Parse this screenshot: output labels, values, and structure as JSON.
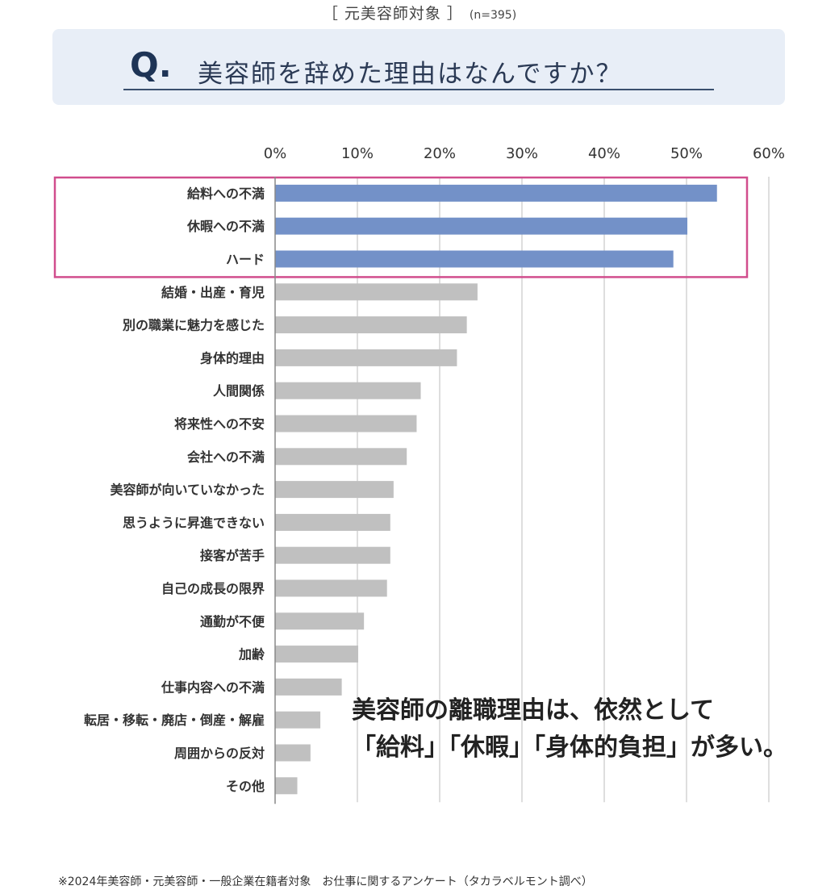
{
  "header": {
    "subtitle": "［ 元美容師対象 ］",
    "sample": "(n=395)",
    "q_mark": "Q.",
    "question": "美容師を辞めた理由はなんですか？"
  },
  "callout": {
    "line1": "美容師の離職理由は、依然として",
    "line2": "「給料」「休暇」「身体的負担」が多い。"
  },
  "footer": {
    "source": "※2024年美容師・元美容師・一般企業在籍者対象　お仕事に関するアンケート（タカラベルモント調べ）"
  },
  "colors": {
    "highlight_bar": "#7391c8",
    "other_bar": "#c0c0c0",
    "highlight_frame": "#d14d8d",
    "grid": "#c8c8c8",
    "axis": "#888888"
  },
  "chart_data": {
    "type": "bar",
    "orientation": "horizontal",
    "xlim": [
      0,
      60
    ],
    "x_ticks": [
      "0%",
      "10%",
      "20%",
      "30%",
      "40%",
      "50%",
      "60%"
    ],
    "tick_values": [
      0,
      10,
      20,
      30,
      40,
      50,
      60
    ],
    "unit": "%",
    "grid": true,
    "highlighted_count": 3,
    "categories": [
      "給料への不満",
      "休暇への不満",
      "ハード",
      "結婚・出産・育児",
      "別の職業に魅力を感じた",
      "身体的理由",
      "人間関係",
      "将来性への不安",
      "会社への不満",
      "美容師が向いていなかった",
      "思うように昇進できない",
      "接客が苦手",
      "自己の成長の限界",
      "通勤が不便",
      "加齢",
      "仕事内容への不満",
      "転居・移転・廃店・倒産・解雇",
      "周囲からの反対",
      "その他"
    ],
    "values": [
      53.7,
      50.1,
      48.4,
      24.6,
      23.3,
      22.1,
      17.7,
      17.2,
      16.0,
      14.4,
      14.0,
      14.0,
      13.6,
      10.8,
      10.1,
      8.1,
      5.5,
      4.3,
      2.7
    ]
  }
}
